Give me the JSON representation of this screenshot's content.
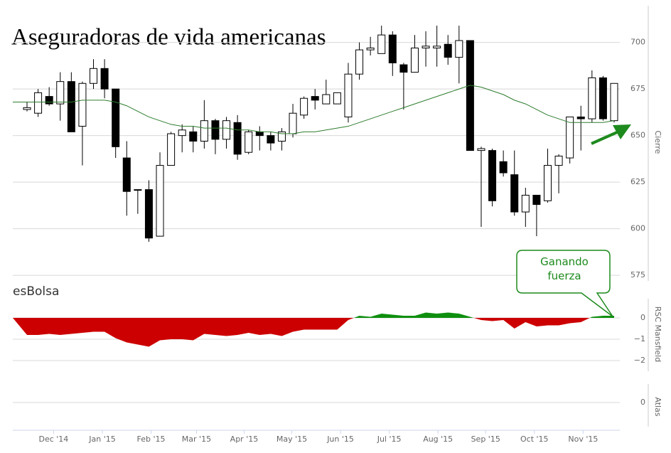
{
  "chart_data": {
    "type": "candlestick",
    "title": "Aseguradoras de vida americanas",
    "brand": "esBolsa",
    "ylabel": "Cierre",
    "categories": [
      null,
      null,
      null,
      null,
      null,
      null,
      null,
      null,
      null,
      null,
      null,
      null,
      null,
      null,
      null,
      null,
      null,
      null,
      null,
      null,
      null,
      null,
      null,
      null,
      null,
      null,
      null,
      null,
      null,
      null,
      null,
      null,
      null,
      null,
      null,
      null,
      null,
      null,
      null,
      null,
      null,
      null,
      null,
      null,
      null,
      null,
      null,
      null,
      null,
      null,
      null,
      null,
      null,
      null
    ],
    "open": [
      664,
      662,
      671,
      667,
      679,
      655,
      678,
      686,
      675,
      638,
      621,
      621,
      596,
      634,
      650,
      652,
      647,
      658,
      648,
      657,
      641,
      652,
      650,
      647,
      651,
      661,
      671,
      667,
      667,
      660,
      683,
      696,
      694,
      704,
      688,
      684,
      697,
      697,
      699,
      692,
      701,
      642,
      642,
      636,
      629,
      609,
      618,
      615,
      634,
      638,
      660,
      659,
      681,
      658
    ],
    "high": [
      668,
      675,
      676,
      684,
      684,
      679,
      691,
      691,
      675,
      647,
      621,
      626,
      641,
      652,
      656,
      655,
      669,
      659,
      660,
      661,
      653,
      655,
      652,
      654,
      667,
      671,
      675,
      680,
      673,
      689,
      700,
      703,
      709,
      706,
      689,
      704,
      706,
      709,
      704,
      709,
      701,
      644,
      643,
      642,
      642,
      622,
      618,
      643,
      640,
      660,
      666,
      685,
      682,
      678
    ],
    "low": [
      663,
      660,
      666,
      658,
      652,
      634,
      675,
      670,
      638,
      607,
      608,
      593,
      596,
      634,
      641,
      641,
      643,
      640,
      643,
      637,
      640,
      642,
      642,
      642,
      649,
      659,
      664,
      668,
      667,
      657,
      680,
      693,
      694,
      682,
      664,
      684,
      687,
      687,
      688,
      678,
      642,
      601,
      612,
      628,
      607,
      601,
      596,
      614,
      619,
      635,
      642,
      657,
      658,
      657
    ],
    "close": [
      665,
      673,
      667,
      679,
      652,
      678,
      686,
      675,
      644,
      620,
      621,
      595,
      634,
      651,
      653,
      647,
      658,
      648,
      658,
      640,
      652,
      650,
      646,
      652,
      662,
      670,
      669,
      672,
      673,
      683,
      696,
      697,
      704,
      689,
      684,
      697,
      698,
      698,
      692,
      701,
      642,
      643,
      615,
      630,
      609,
      618,
      613,
      634,
      639,
      660,
      659,
      681,
      659,
      678
    ],
    "up_color": "#ffffff",
    "down_color": "#000000",
    "ma": {
      "color": "#2e7d2e",
      "values": [
        668,
        668,
        668,
        668,
        668,
        669,
        669,
        669,
        668,
        666,
        663,
        660,
        658,
        656,
        655,
        655,
        654,
        654,
        654,
        653,
        653,
        652,
        652,
        651,
        651,
        652,
        652,
        653,
        654,
        655,
        657,
        659,
        661,
        663,
        665,
        667,
        669,
        671,
        673,
        675,
        677,
        676,
        674,
        672,
        669,
        667,
        664,
        661,
        659,
        657,
        657,
        657,
        657,
        658
      ]
    },
    "ylim": [
      572,
      722
    ],
    "yticks": [
      575,
      600,
      625,
      650,
      675,
      700
    ],
    "grid": true,
    "xticks": [
      {
        "value": 2.4,
        "label": "Dec '14"
      },
      {
        "value": 6.8,
        "label": "Jan '15"
      },
      {
        "value": 11.2,
        "label": "Feb '15"
      },
      {
        "value": 15.3,
        "label": "Mar '15"
      },
      {
        "value": 19.6,
        "label": "Apr '15"
      },
      {
        "value": 23.9,
        "label": "May '15"
      },
      {
        "value": 28.3,
        "label": "Jun '15"
      },
      {
        "value": 32.7,
        "label": "Jul '15"
      },
      {
        "value": 37.1,
        "label": "Aug '15"
      },
      {
        "value": 41.4,
        "label": "Sep '15"
      },
      {
        "value": 45.8,
        "label": "Oct '15"
      },
      {
        "value": 50.2,
        "label": "Nov '15"
      }
    ],
    "annotation": "Ganando fuerza",
    "panels": [
      {
        "type": "area",
        "label": "RSC Mansfield",
        "up_color": "#0f8f0f",
        "down_color": "#cc0000",
        "values": [
          -0.8,
          -0.8,
          -0.75,
          -0.8,
          -0.75,
          -0.7,
          -0.65,
          -0.65,
          -0.95,
          -1.15,
          -1.25,
          -1.35,
          -1.05,
          -1.0,
          -1.0,
          -1.05,
          -0.75,
          -0.8,
          -0.85,
          -0.8,
          -0.7,
          -0.8,
          -0.75,
          -0.85,
          -0.65,
          -0.55,
          -0.55,
          -0.55,
          -0.55,
          -0.1,
          0.1,
          0.05,
          0.2,
          0.15,
          0.1,
          0.1,
          0.25,
          0.2,
          0.25,
          0.2,
          0.05,
          -0.1,
          -0.15,
          -0.1,
          -0.5,
          -0.2,
          -0.4,
          -0.35,
          -0.35,
          -0.25,
          -0.2,
          0.05,
          0.1,
          0.1
        ],
        "ylim": [
          -2.5,
          0.9
        ],
        "yticks": [
          0,
          {
            "value": -1,
            "label": "−1"
          },
          {
            "value": -2,
            "label": "−2"
          }
        ]
      },
      {
        "type": "empty",
        "label": "Atlas",
        "ylim": [
          -1,
          1
        ],
        "yticks": [
          0
        ]
      }
    ]
  }
}
